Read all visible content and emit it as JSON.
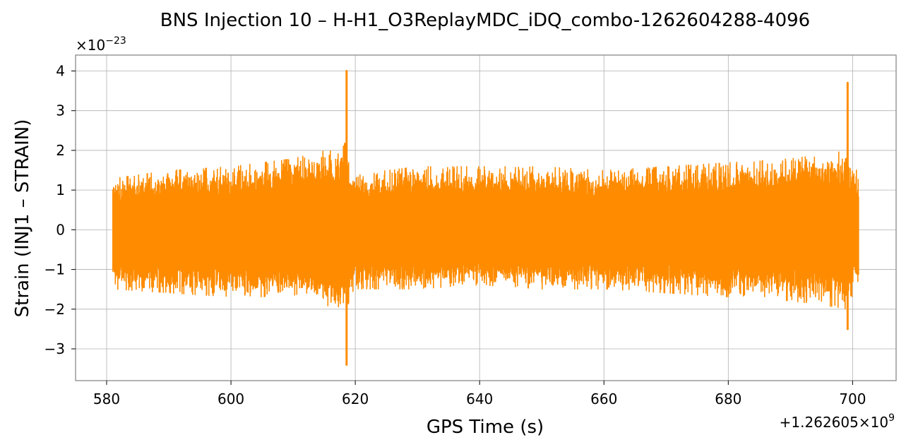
{
  "chart_data": {
    "type": "line",
    "title": "BNS Injection 10 – H-H1_O3ReplayMDC_iDQ_combo-1262604288-4096",
    "xlabel": "GPS Time (s)",
    "ylabel": "Strain (INJ1 – STRAIN)",
    "x_offset_label": "+1.262605×10",
    "x_offset_exponent": "9",
    "y_multiplier_label": "×10",
    "y_multiplier_exponent": "−23",
    "xlim": [
      575,
      707
    ],
    "ylim": [
      -3.8,
      4.4
    ],
    "xticks": [
      580,
      600,
      620,
      640,
      660,
      680,
      700
    ],
    "xtick_labels": [
      "580",
      "600",
      "620",
      "640",
      "660",
      "680",
      "700"
    ],
    "yticks": [
      -3,
      -2,
      -1,
      0,
      1,
      2,
      3,
      4
    ],
    "ytick_labels": [
      "−3",
      "−2",
      "−1",
      "0",
      "1",
      "2",
      "3",
      "4"
    ],
    "grid": true,
    "series": [
      {
        "color": "#ff8c00",
        "x_range": [
          581,
          701
        ],
        "typical_envelope": 1.1,
        "envelope_profile": {
          "x": [
            581,
            590,
            600,
            610,
            615,
            618.5,
            620,
            630,
            640,
            650,
            660,
            670,
            680,
            690,
            695,
            699,
            701
          ],
          "max": [
            1.3,
            1.5,
            1.6,
            1.8,
            2.0,
            2.2,
            1.4,
            1.6,
            1.6,
            1.6,
            1.5,
            1.6,
            1.7,
            1.8,
            1.9,
            2.0,
            1.4
          ],
          "min": [
            -1.5,
            -1.6,
            -1.7,
            -1.7,
            -1.9,
            -2.2,
            -1.5,
            -1.5,
            -1.4,
            -1.5,
            -1.5,
            -1.6,
            -1.7,
            -1.8,
            -1.9,
            -2.0,
            -1.3
          ]
        },
        "peaks": [
          {
            "x": 618.6,
            "max": 4.0,
            "min": -3.4
          },
          {
            "x": 699.2,
            "max": 3.7,
            "min": -2.5
          }
        ]
      }
    ]
  }
}
